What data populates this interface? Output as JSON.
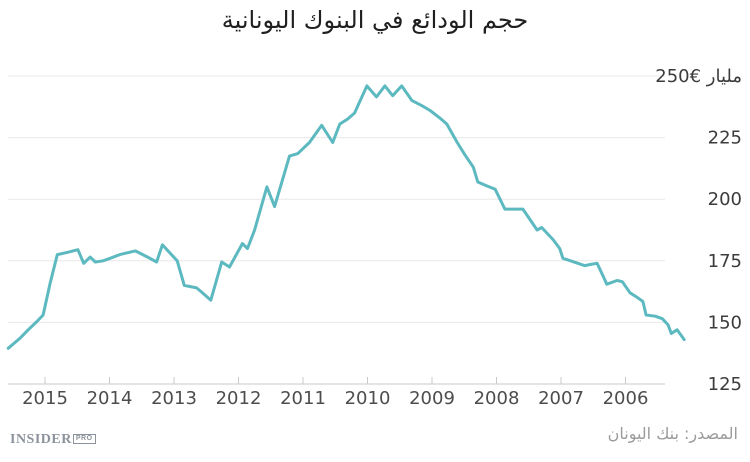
{
  "title": "حجم الودائع في البنوك اليونانية",
  "source_text": "المصدر: بنك اليونان",
  "logo": {
    "name": "INSIDER",
    "badge": "PRO"
  },
  "colors": {
    "line": "#5cb9c0",
    "grid": "#e8e8e8",
    "axis": "#c9c9c9",
    "title_text": "#1f1f1f",
    "y_label_text": "#3c3c3c",
    "x_label_text": "#4d4d4d",
    "source_text": "#9b9b9b",
    "logo_text": "#8d939c"
  },
  "chart_data": {
    "type": "line",
    "title": "حجم الودائع في البنوك اليونانية",
    "xlabel": "",
    "ylabel": "مليار €",
    "unit_note": "قيم بمليار يورو، المحور الزمني معكوس (2015 يسارًا حتى 2006 يمينًا)",
    "x_axis_reversed": true,
    "grid": true,
    "legend": "none",
    "ylim": [
      125,
      250
    ],
    "y_ticks": [
      250,
      225,
      200,
      175,
      150,
      125
    ],
    "y_tick_labels": [
      "250€ مليار",
      "225",
      "200",
      "175",
      "150",
      "125"
    ],
    "x_ticks": [
      2015,
      2014,
      2013,
      2012,
      2011,
      2010,
      2009,
      2008,
      2007,
      2006
    ],
    "x_tick_labels": [
      "2015",
      "2014",
      "2013",
      "2012",
      "2011",
      "2010",
      "2009",
      "2008",
      "2007",
      "2006"
    ],
    "series": [
      {
        "name": "حجم الودائع",
        "points": [
          [
            2005.09,
            143
          ],
          [
            2005.2,
            147
          ],
          [
            2005.29,
            145.5
          ],
          [
            2005.34,
            149
          ],
          [
            2005.43,
            151.5
          ],
          [
            2005.54,
            152.5
          ],
          [
            2005.68,
            153
          ],
          [
            2005.73,
            158.5
          ],
          [
            2005.81,
            160
          ],
          [
            2005.93,
            162
          ],
          [
            2006.05,
            166.5
          ],
          [
            2006.13,
            167
          ],
          [
            2006.29,
            165.5
          ],
          [
            2006.35,
            169
          ],
          [
            2006.44,
            174
          ],
          [
            2006.55,
            173.5
          ],
          [
            2006.63,
            173
          ],
          [
            2006.83,
            174.8
          ],
          [
            2006.97,
            176
          ],
          [
            2007.02,
            180
          ],
          [
            2007.12,
            183.5
          ],
          [
            2007.3,
            188.5
          ],
          [
            2007.37,
            187.5
          ],
          [
            2007.59,
            196
          ],
          [
            2007.87,
            196
          ],
          [
            2008.02,
            204
          ],
          [
            2008.16,
            205.5
          ],
          [
            2008.29,
            207
          ],
          [
            2008.36,
            213
          ],
          [
            2008.49,
            218
          ],
          [
            2008.61,
            223
          ],
          [
            2008.77,
            230.5
          ],
          [
            2008.88,
            233
          ],
          [
            2009.03,
            236
          ],
          [
            2009.16,
            238
          ],
          [
            2009.31,
            240
          ],
          [
            2009.47,
            246
          ],
          [
            2009.61,
            242
          ],
          [
            2009.73,
            246
          ],
          [
            2009.86,
            241.5
          ],
          [
            2010.01,
            246
          ],
          [
            2010.2,
            235
          ],
          [
            2010.31,
            232.5
          ],
          [
            2010.43,
            230.5
          ],
          [
            2010.54,
            223
          ],
          [
            2010.71,
            230
          ],
          [
            2010.9,
            223
          ],
          [
            2011.08,
            218.5
          ],
          [
            2011.21,
            217.5
          ],
          [
            2011.44,
            197
          ],
          [
            2011.56,
            205
          ],
          [
            2011.75,
            187.5
          ],
          [
            2011.86,
            180
          ],
          [
            2011.94,
            182
          ],
          [
            2012.14,
            172.5
          ],
          [
            2012.26,
            174.5
          ],
          [
            2012.43,
            159
          ],
          [
            2012.56,
            162
          ],
          [
            2012.65,
            164
          ],
          [
            2012.84,
            165
          ],
          [
            2012.95,
            175
          ],
          [
            2013.18,
            181.5
          ],
          [
            2013.27,
            174.5
          ],
          [
            2013.41,
            176.5
          ],
          [
            2013.6,
            179
          ],
          [
            2013.84,
            177.5
          ],
          [
            2013.99,
            176
          ],
          [
            2014.1,
            175
          ],
          [
            2014.22,
            174.5
          ],
          [
            2014.3,
            176.5
          ],
          [
            2014.4,
            174
          ],
          [
            2014.49,
            179.5
          ],
          [
            2014.64,
            178.5
          ],
          [
            2014.81,
            177.5
          ],
          [
            2014.92,
            166
          ],
          [
            2015.03,
            153
          ],
          [
            2015.14,
            150
          ],
          [
            2015.26,
            147
          ],
          [
            2015.39,
            143.5
          ],
          [
            2015.57,
            139.5
          ]
        ]
      }
    ]
  }
}
